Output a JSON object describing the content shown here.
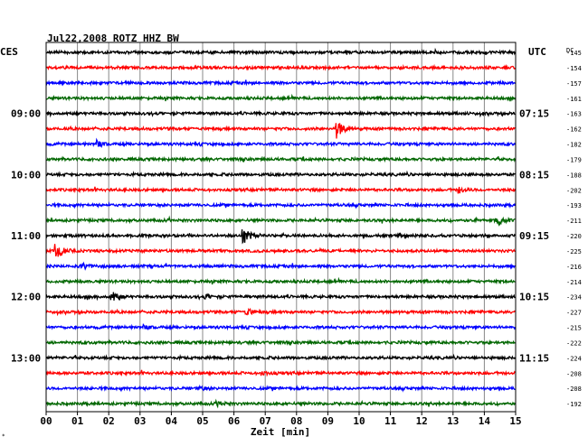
{
  "chart_data": {
    "type": "line",
    "title": "Jul22,2008   ROTZ HHZ BW",
    "xlabel": "Zeit [min]",
    "left_axis_label": "CES",
    "right_axis_label": "UTC",
    "dc_label": "DC",
    "xlim": [
      0,
      15
    ],
    "x_ticks": [
      "00",
      "01",
      "02",
      "03",
      "04",
      "05",
      "06",
      "07",
      "08",
      "09",
      "10",
      "11",
      "12",
      "13",
      "14",
      "15"
    ],
    "trace_colors": [
      "#000000",
      "#ff0000",
      "#0000ff",
      "#006600"
    ],
    "trace_minutes": 15,
    "left_time_labels": [
      {
        "trace": 4,
        "label": "09:00"
      },
      {
        "trace": 8,
        "label": "10:00"
      },
      {
        "trace": 12,
        "label": "11:00"
      },
      {
        "trace": 16,
        "label": "12:00"
      },
      {
        "trace": 20,
        "label": "13:00"
      }
    ],
    "right_time_labels": [
      {
        "trace": 4,
        "label": "07:15"
      },
      {
        "trace": 8,
        "label": "08:15"
      },
      {
        "trace": 12,
        "label": "09:15"
      },
      {
        "trace": 16,
        "label": "10:15"
      },
      {
        "trace": 20,
        "label": "11:15"
      }
    ],
    "dc_offsets": [
      "-145",
      "-154",
      "-157",
      "-161",
      "-163",
      "-162",
      "-182",
      "-179",
      "-188",
      "-202",
      "-193",
      "-211",
      "-220",
      "-225",
      "-216",
      "-214",
      "-234",
      "-227",
      "-215",
      "-222",
      "-224",
      "-208",
      "-208",
      "-192"
    ],
    "events": [
      {
        "trace": 5,
        "minute": 9.3,
        "amplitude": 10
      },
      {
        "trace": 6,
        "minute": 1.6,
        "amplitude": 4
      },
      {
        "trace": 9,
        "minute": 13.2,
        "amplitude": 3
      },
      {
        "trace": 11,
        "minute": 14.4,
        "amplitude": 5
      },
      {
        "trace": 12,
        "minute": 6.3,
        "amplitude": 9
      },
      {
        "trace": 13,
        "minute": 0.3,
        "amplitude": 10
      },
      {
        "trace": 14,
        "minute": 1.2,
        "amplitude": 3
      },
      {
        "trace": 16,
        "minute": 2.1,
        "amplitude": 6
      },
      {
        "trace": 16,
        "minute": 5.1,
        "amplitude": 2
      },
      {
        "trace": 17,
        "minute": 6.4,
        "amplitude": 4
      },
      {
        "trace": 18,
        "minute": 3.1,
        "amplitude": 2
      },
      {
        "trace": 21,
        "minute": 6.9,
        "amplitude": 2
      },
      {
        "trace": 22,
        "minute": 4.9,
        "amplitude": 2
      },
      {
        "trace": 23,
        "minute": 5.5,
        "amplitude": 2
      }
    ],
    "grid": true
  }
}
